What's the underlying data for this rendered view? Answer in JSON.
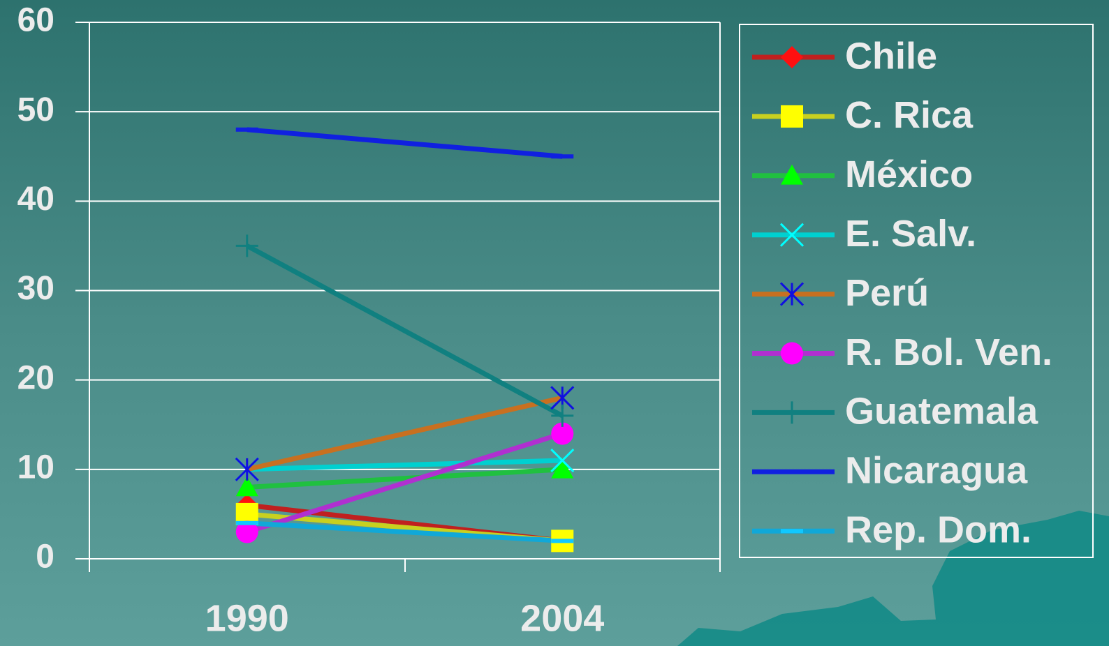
{
  "chart_data": {
    "type": "line",
    "categories": [
      "1990",
      "2004"
    ],
    "ylim": [
      0,
      60
    ],
    "yticks": [
      0,
      10,
      20,
      30,
      40,
      50,
      60
    ],
    "grid": true,
    "series": [
      {
        "name": "Chile",
        "color": "#c0201f",
        "marker_color": "#ff1010",
        "marker": "diamond",
        "values": [
          6,
          2
        ]
      },
      {
        "name": "C. Rica",
        "color": "#c8d020",
        "marker_color": "#ffff00",
        "marker": "square",
        "values": [
          5,
          2
        ]
      },
      {
        "name": "México",
        "color": "#20c040",
        "marker_color": "#00ff00",
        "marker": "triangle",
        "values": [
          8,
          10
        ]
      },
      {
        "name": "E. Salv.",
        "color": "#00d0d0",
        "marker_color": "#00ffff",
        "marker": "x",
        "values": [
          10,
          11
        ]
      },
      {
        "name": "Perú",
        "color": "#c87020",
        "marker_color": "#1010e0",
        "marker": "star",
        "values": [
          10,
          18
        ]
      },
      {
        "name": "R. Bol. Ven.",
        "color": "#b030d0",
        "marker_color": "#ff00ff",
        "marker": "circle",
        "values": [
          3,
          14
        ]
      },
      {
        "name": "Guatemala",
        "color": "#108080",
        "marker_color": "#108080",
        "marker": "plus",
        "values": [
          35,
          16
        ]
      },
      {
        "name": "Nicaragua",
        "color": "#1020e0",
        "marker_color": "#1020e0",
        "marker": "dash",
        "values": [
          48,
          45
        ]
      },
      {
        "name": "Rep. Dom.",
        "color": "#10a8d8",
        "marker_color": "#10c8ff",
        "marker": "dash",
        "values": [
          4,
          2
        ]
      }
    ]
  }
}
